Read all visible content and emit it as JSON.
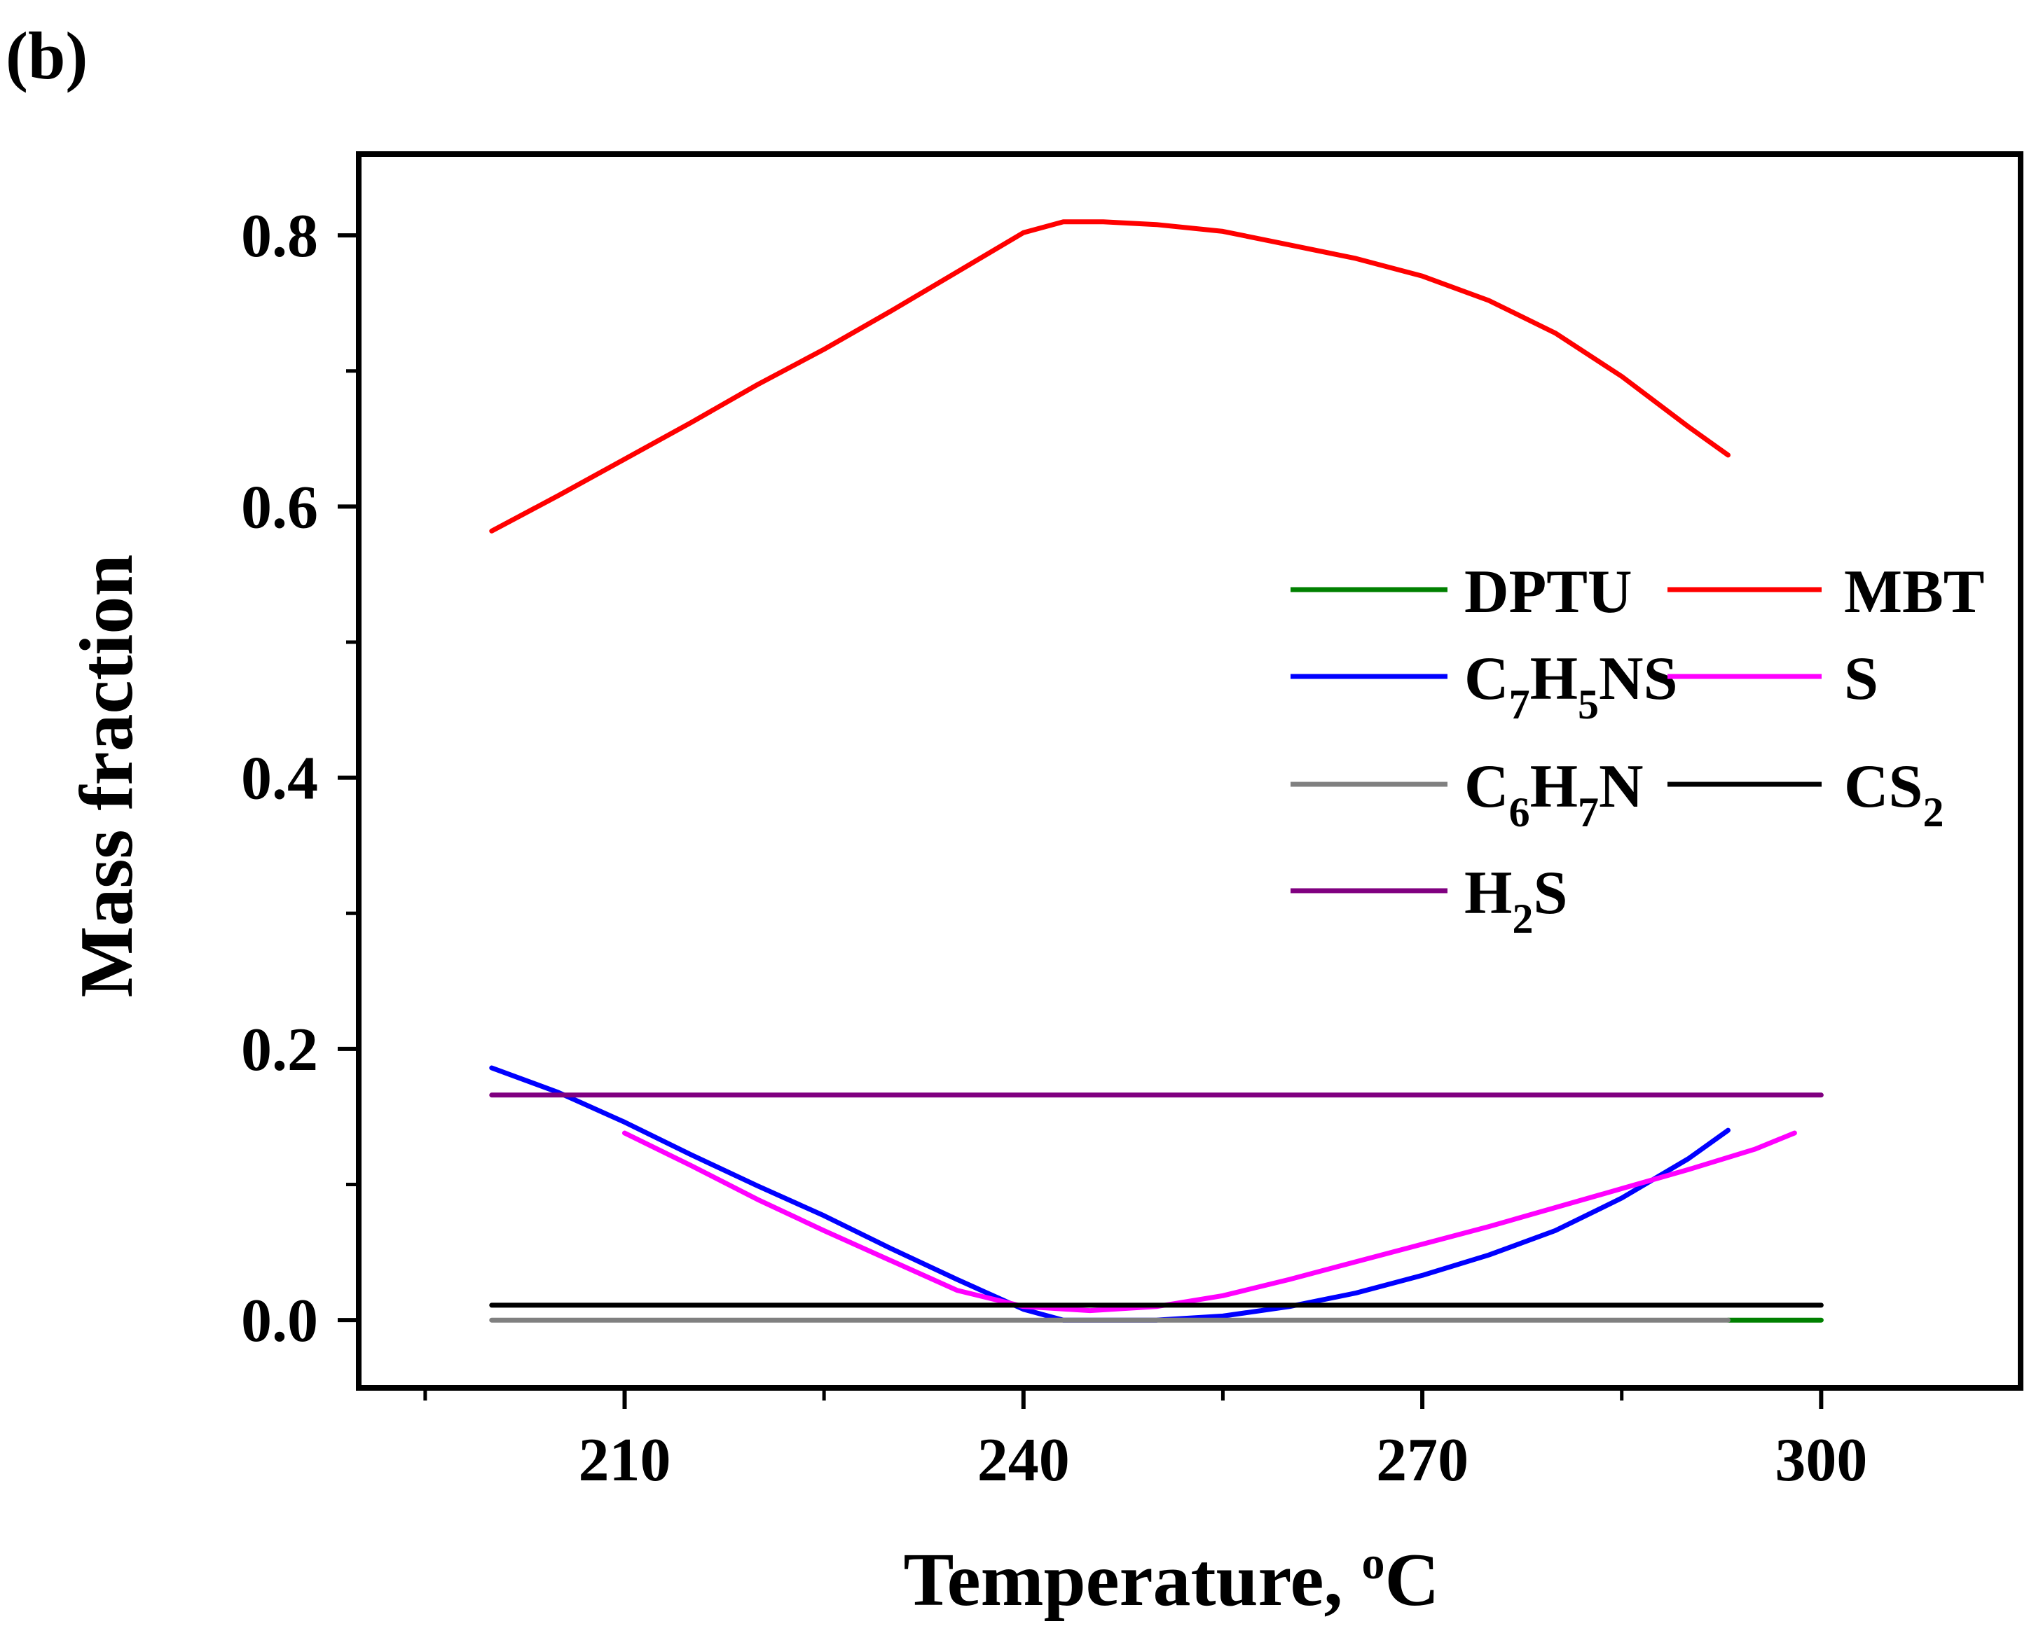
{
  "chart_data": {
    "type": "line",
    "panel_label": "(b)",
    "title": "",
    "xlabel": "Temperature, oC",
    "xlabel_parts": {
      "main": "Temperature, ",
      "sup": "o",
      "unit": "C"
    },
    "ylabel": "Mass fraction",
    "xlim": [
      190,
      315
    ],
    "ylim": [
      -0.05,
      0.86
    ],
    "x_ticks": [
      210,
      240,
      270,
      300
    ],
    "x_tick_labels": [
      "210",
      "240",
      "270",
      "300"
    ],
    "x_minor_ticks": [
      195,
      225,
      255,
      285
    ],
    "y_ticks": [
      0.0,
      0.2,
      0.4,
      0.6,
      0.8
    ],
    "y_tick_labels": [
      "0.0",
      "0.2",
      "0.4",
      "0.6",
      "0.8"
    ],
    "y_minor_ticks": [
      0.1,
      0.3,
      0.5,
      0.7
    ],
    "legend_placement": "right-middle",
    "series": [
      {
        "name": "DPTU",
        "legend_parts": [
          {
            "t": "DPTU"
          }
        ],
        "color": "#008000",
        "x": [
          293,
          300
        ],
        "y": [
          0.0,
          0.0
        ]
      },
      {
        "name": "MBT",
        "legend_parts": [
          {
            "t": "MBT"
          }
        ],
        "color": "#ff0000",
        "x": [
          200,
          205,
          210,
          215,
          220,
          225,
          230,
          235,
          240,
          243,
          246,
          250,
          255,
          260,
          265,
          270,
          275,
          280,
          285,
          290,
          293
        ],
        "y": [
          0.582,
          0.608,
          0.635,
          0.662,
          0.69,
          0.716,
          0.744,
          0.773,
          0.802,
          0.81,
          0.81,
          0.808,
          0.803,
          0.793,
          0.783,
          0.77,
          0.752,
          0.728,
          0.696,
          0.659,
          0.638
        ]
      },
      {
        "name": "C7H5NS",
        "legend_parts": [
          {
            "t": "C"
          },
          {
            "t": "7",
            "sub": true
          },
          {
            "t": "H"
          },
          {
            "t": "5",
            "sub": true
          },
          {
            "t": "NS"
          }
        ],
        "color": "#0000ff",
        "x": [
          200,
          205,
          210,
          215,
          220,
          225,
          230,
          235,
          240,
          243,
          245,
          250,
          255,
          260,
          265,
          270,
          275,
          280,
          285,
          290,
          293
        ],
        "y": [
          0.186,
          0.168,
          0.146,
          0.122,
          0.099,
          0.077,
          0.053,
          0.03,
          0.008,
          0.0,
          0.0,
          0.0,
          0.003,
          0.01,
          0.02,
          0.033,
          0.048,
          0.066,
          0.09,
          0.119,
          0.14
        ]
      },
      {
        "name": "S",
        "legend_parts": [
          {
            "t": "S"
          }
        ],
        "color": "#ff00ff",
        "x": [
          210,
          215,
          220,
          225,
          230,
          235,
          240,
          245,
          250,
          255,
          260,
          265,
          270,
          275,
          280,
          285,
          290,
          295,
          298
        ],
        "y": [
          0.138,
          0.114,
          0.089,
          0.066,
          0.044,
          0.022,
          0.01,
          0.007,
          0.01,
          0.018,
          0.03,
          0.043,
          0.056,
          0.069,
          0.083,
          0.097,
          0.111,
          0.126,
          0.138
        ]
      },
      {
        "name": "C6H7N",
        "legend_parts": [
          {
            "t": "C"
          },
          {
            "t": "6",
            "sub": true
          },
          {
            "t": "H"
          },
          {
            "t": "7",
            "sub": true
          },
          {
            "t": "N"
          }
        ],
        "color": "#808080",
        "x": [
          200,
          293
        ],
        "y": [
          0.0,
          0.0
        ]
      },
      {
        "name": "CS2",
        "legend_parts": [
          {
            "t": "CS"
          },
          {
            "t": "2",
            "sub": true
          }
        ],
        "color": "#000000",
        "x": [
          200,
          300
        ],
        "y": [
          0.011,
          0.011
        ]
      },
      {
        "name": "H2S",
        "legend_parts": [
          {
            "t": "H"
          },
          {
            "t": "2",
            "sub": true
          },
          {
            "t": "S"
          }
        ],
        "color": "#800080",
        "x": [
          200,
          300
        ],
        "y": [
          0.166,
          0.166
        ]
      }
    ]
  }
}
